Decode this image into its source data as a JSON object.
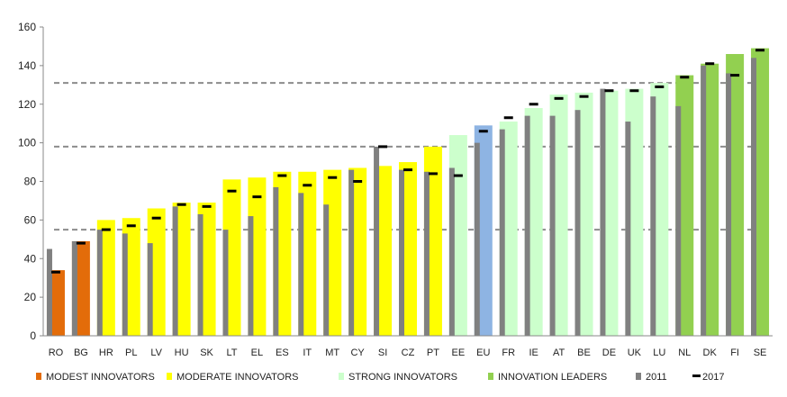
{
  "chart_data": {
    "type": "bar",
    "title": "",
    "xlabel": "",
    "ylabel": "",
    "ylim": [
      0,
      160
    ],
    "yticks": [
      0,
      20,
      40,
      60,
      80,
      100,
      120,
      140,
      160
    ],
    "grid": false,
    "legend_position": "bottom",
    "categories": [
      "RO",
      "BG",
      "HR",
      "PL",
      "LV",
      "HU",
      "SK",
      "LT",
      "EL",
      "ES",
      "IT",
      "MT",
      "CY",
      "SI",
      "CZ",
      "PT",
      "EE",
      "EU",
      "FR",
      "IE",
      "AT",
      "BE",
      "DE",
      "UK",
      "LU",
      "NL",
      "DK",
      "FI",
      "SE"
    ],
    "groups": [
      "modest",
      "modest",
      "moderate",
      "moderate",
      "moderate",
      "moderate",
      "moderate",
      "moderate",
      "moderate",
      "moderate",
      "moderate",
      "moderate",
      "moderate",
      "moderate",
      "moderate",
      "moderate",
      "strong",
      "eu",
      "strong",
      "strong",
      "strong",
      "strong",
      "strong",
      "strong",
      "strong",
      "leader",
      "leader",
      "leader",
      "leader"
    ],
    "series": [
      {
        "name": "2011",
        "values": [
          45,
          49,
          55,
          53,
          48,
          67,
          63,
          55,
          62,
          77,
          74,
          68,
          86,
          98,
          86,
          85,
          87,
          100,
          107,
          114,
          114,
          117,
          128,
          111,
          124,
          119,
          140,
          136,
          144
        ]
      },
      {
        "name": "2017",
        "values": [
          33,
          48,
          55,
          57,
          61,
          68,
          67,
          75,
          72,
          83,
          78,
          82,
          80,
          98,
          86,
          84,
          83,
          106,
          113,
          120,
          123,
          124,
          127,
          127,
          129,
          134,
          141,
          135,
          148
        ]
      }
    ],
    "category_bar_values": [
      34,
      49,
      60,
      61,
      66,
      69,
      69,
      81,
      82,
      85,
      85,
      86,
      87,
      88,
      90,
      98,
      104,
      109,
      111,
      118,
      125,
      126,
      127,
      128,
      131,
      135,
      141,
      146,
      149
    ],
    "reference_lines": [
      55,
      98,
      131
    ],
    "legend": [
      {
        "label": "MODEST INNOVATORS",
        "color": "#E36C0A"
      },
      {
        "label": "MODERATE INNOVATORS",
        "color": "#FFFF00"
      },
      {
        "label": "STRONG INNOVATORS",
        "color": "#CCFFCC"
      },
      {
        "label": "INNOVATION LEADERS",
        "color": "#92D050"
      },
      {
        "label": "2011",
        "color": "#808080"
      },
      {
        "label": "2017",
        "color": "#000000"
      }
    ],
    "group_colors": {
      "modest": "#E36C0A",
      "moderate": "#FFFF00",
      "strong": "#CCFFCC",
      "leader": "#92D050",
      "eu": "#8EB4E3"
    }
  }
}
